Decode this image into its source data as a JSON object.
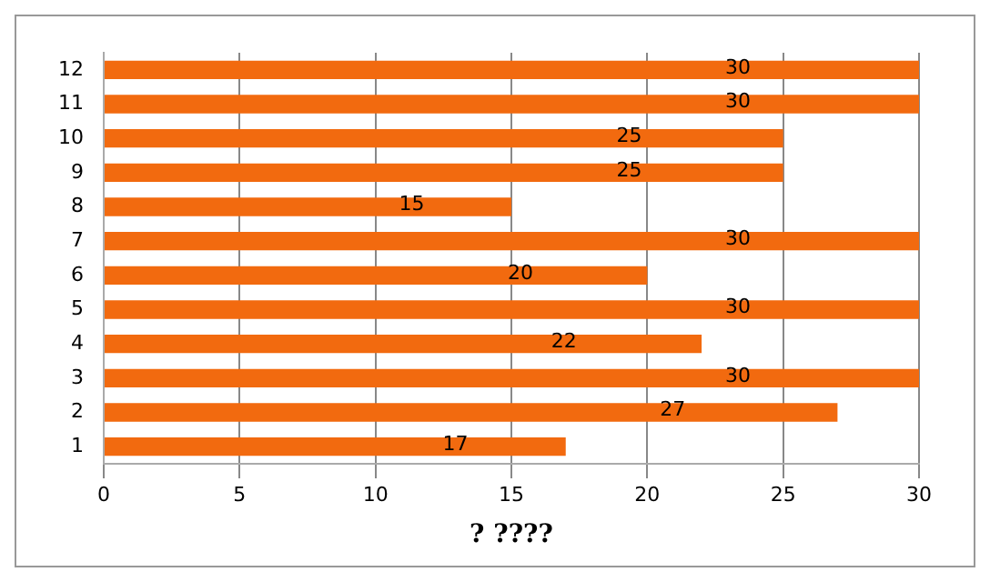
{
  "chart_data": {
    "type": "bar",
    "orientation": "horizontal",
    "xlabel": "? ????",
    "categories": [
      "12",
      "11",
      "10",
      "9",
      "8",
      "7",
      "6",
      "5",
      "4",
      "3",
      "2",
      "1"
    ],
    "values": [
      30,
      30,
      25,
      25,
      15,
      30,
      20,
      30,
      22,
      30,
      27,
      17
    ],
    "color": "#f26a0f",
    "xlim": [
      0,
      30
    ],
    "xticks": [
      0,
      5,
      10,
      15,
      20,
      25,
      30
    ],
    "grid": "x",
    "data_labels": true,
    "legend": false
  }
}
